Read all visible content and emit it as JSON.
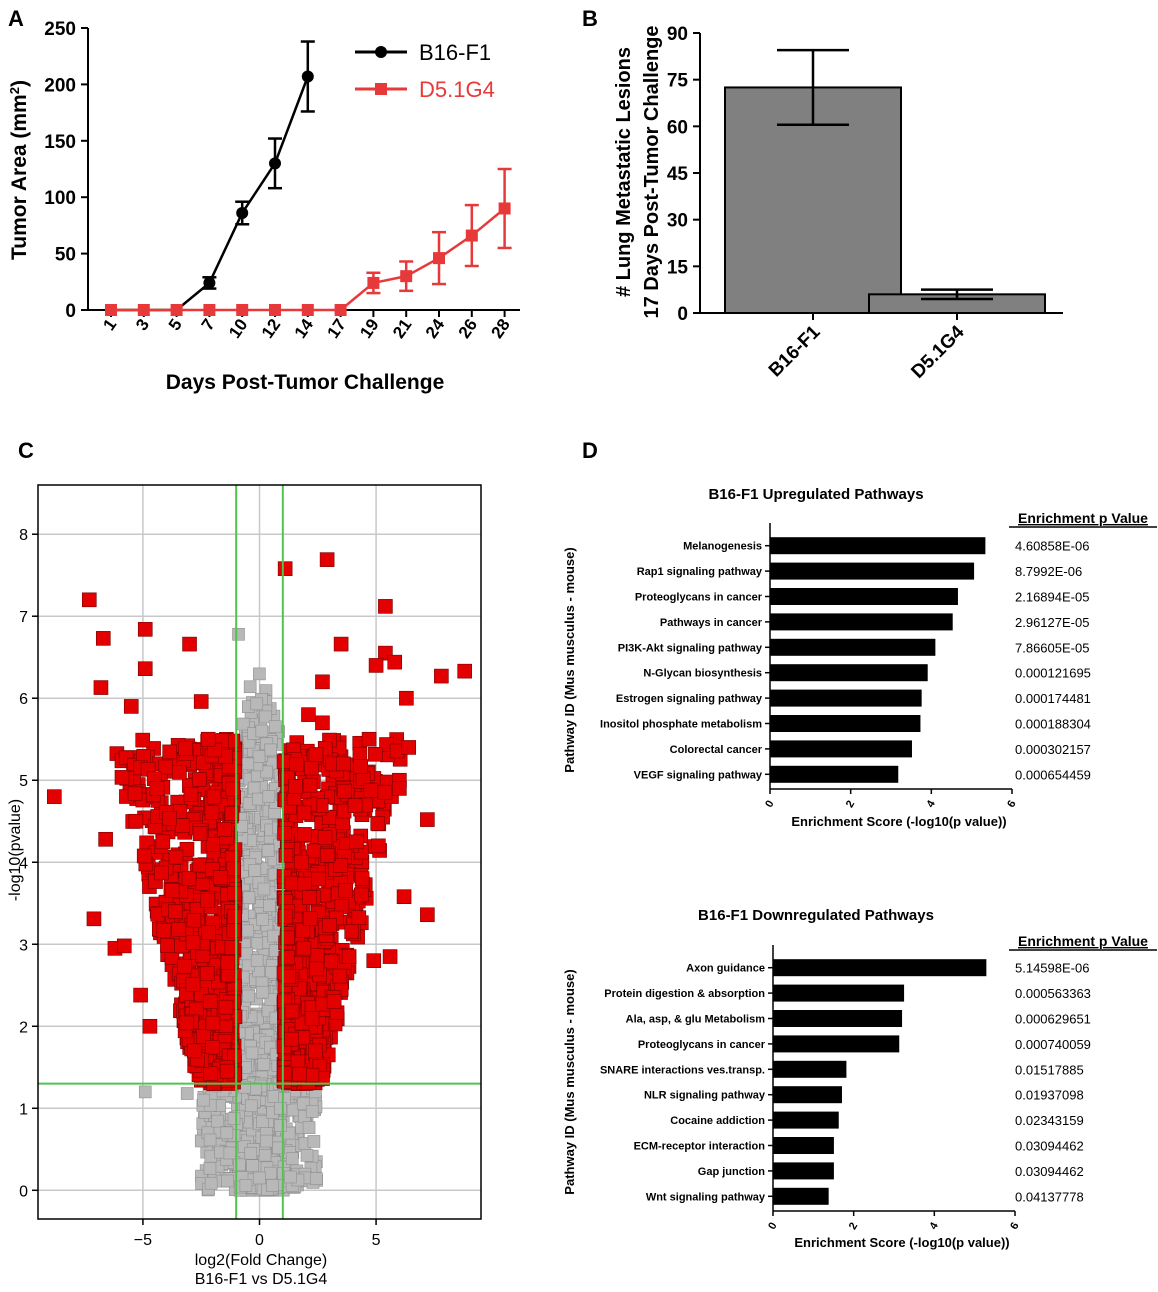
{
  "panel_labels": {
    "a": "A",
    "b": "B",
    "c": "C",
    "d": "D"
  },
  "colors": {
    "black": "#000000",
    "red": "#e8393a",
    "bar_gray": "#808080",
    "point_red": "#e30000",
    "point_gray": "#b8b8b8",
    "grid": "#c8c8c8",
    "threshold": "#53c24f"
  },
  "chart_data": [
    {
      "type": "line",
      "panel": "A",
      "xlabel": "Days Post-Tumor Challenge",
      "ylabel_main": "Tumor Area (mm",
      "ylabel_sup": "2",
      "ylabel_end": ")",
      "ylim": [
        0,
        250
      ],
      "yticks": [
        0,
        50,
        100,
        150,
        200,
        250
      ],
      "categories": [
        "1",
        "3",
        "5",
        "7",
        "10",
        "12",
        "14",
        "17",
        "19",
        "21",
        "24",
        "26",
        "28"
      ],
      "series": [
        {
          "name": "B16-F1",
          "color": "#000000",
          "marker": "circle",
          "values": [
            0,
            0,
            0,
            24,
            86,
            130,
            207,
            null,
            null,
            null,
            null,
            null,
            null
          ],
          "errors": [
            0,
            0,
            0,
            5,
            10,
            22,
            31,
            null,
            null,
            null,
            null,
            null,
            null
          ]
        },
        {
          "name": "D5.1G4",
          "color": "#e8393a",
          "marker": "square",
          "values": [
            0,
            0,
            0,
            0,
            0,
            0,
            0,
            0,
            24,
            30,
            46,
            66,
            90
          ],
          "errors": [
            0,
            0,
            0,
            0,
            0,
            0,
            0,
            0,
            9,
            13,
            23,
            27,
            35
          ]
        }
      ]
    },
    {
      "type": "bar",
      "panel": "B",
      "ylabel_line1": "# Lung Metastatic Lesions",
      "ylabel_line2": "17 Days Post-Tumor Challenge",
      "ylim": [
        0,
        90
      ],
      "yticks": [
        0,
        15,
        30,
        45,
        60,
        75,
        90
      ],
      "categories": [
        "B16-F1",
        "D5.1G4"
      ],
      "values": [
        72.5,
        6
      ],
      "errors": [
        12,
        1.5
      ]
    },
    {
      "type": "scatter",
      "panel": "C",
      "xlabel_line1": "log2(Fold Change)",
      "xlabel_line2": "B16-F1 vs D5.1G4",
      "ylabel": "-log10(pvalue)",
      "xlim": [
        -9.5,
        9.5
      ],
      "ylim": [
        -0.35,
        8.6
      ],
      "xticks": [
        -5,
        0,
        5
      ],
      "xtick_labels": [
        "−5",
        "0",
        "5"
      ],
      "yticks": [
        0,
        1,
        2,
        3,
        4,
        5,
        6,
        7,
        8
      ],
      "x_thresholds": [
        -1,
        1
      ],
      "y_threshold": 1.3,
      "significant_points": [
        [
          -8.8,
          4.8
        ],
        [
          -7.3,
          7.2
        ],
        [
          -6.7,
          6.73
        ],
        [
          -6.8,
          6.13
        ],
        [
          -6.6,
          4.28
        ],
        [
          -7.1,
          3.31
        ],
        [
          -6.2,
          2.95
        ],
        [
          -5.8,
          2.98
        ],
        [
          -5.1,
          2.38
        ],
        [
          -4.9,
          6.84
        ],
        [
          -4.9,
          6.36
        ],
        [
          -4.7,
          2.0
        ],
        [
          -3.0,
          6.66
        ],
        [
          -2.5,
          5.96
        ],
        [
          -5.5,
          5.9
        ],
        [
          -5.3,
          4.5
        ],
        [
          -4.4,
          4.9
        ],
        [
          -3.6,
          3.4
        ],
        [
          -2.2,
          5.5
        ],
        [
          -1.5,
          4.4
        ],
        [
          -2.8,
          1.7
        ],
        [
          1.1,
          7.58
        ],
        [
          2.9,
          7.69
        ],
        [
          3.5,
          6.66
        ],
        [
          5.4,
          7.12
        ],
        [
          5.4,
          6.55
        ],
        [
          5.0,
          6.4
        ],
        [
          5.8,
          6.44
        ],
        [
          7.8,
          6.27
        ],
        [
          8.8,
          6.33
        ],
        [
          2.7,
          6.2
        ],
        [
          2.7,
          5.7
        ],
        [
          6.3,
          6.0
        ],
        [
          6.4,
          5.4
        ],
        [
          6.0,
          5.0
        ],
        [
          7.2,
          4.52
        ],
        [
          6.2,
          3.58
        ],
        [
          7.2,
          3.36
        ],
        [
          5.6,
          2.85
        ],
        [
          4.9,
          2.8
        ],
        [
          6.0,
          4.9
        ],
        [
          5.1,
          4.2
        ],
        [
          4.4,
          3.8
        ],
        [
          3.6,
          5.2
        ],
        [
          1.8,
          4.0
        ],
        [
          2.4,
          1.7
        ],
        [
          3.2,
          2.3
        ],
        [
          2.1,
          5.8
        ],
        [
          4.7,
          5.5
        ]
      ],
      "nonsignificant_points": [
        [
          -0.9,
          6.78
        ],
        [
          -0.4,
          6.14
        ],
        [
          0.1,
          5.6
        ],
        [
          -0.5,
          5.2
        ],
        [
          0.4,
          4.8
        ],
        [
          -0.2,
          3.9
        ],
        [
          0.6,
          3.1
        ],
        [
          -0.7,
          2.6
        ],
        [
          -4.9,
          1.2
        ],
        [
          -3.1,
          1.18
        ],
        [
          -0.3,
          0.3
        ],
        [
          0.3,
          0.6
        ],
        [
          0.9,
          1.0
        ],
        [
          -1.4,
          0.7
        ],
        [
          2.4,
          1.2
        ],
        [
          -2.4,
          1.1
        ],
        [
          0.0,
          0.15
        ],
        [
          -0.6,
          1.5
        ],
        [
          0.7,
          2.1
        ],
        [
          -0.1,
          2.8
        ]
      ]
    },
    {
      "type": "bar",
      "panel": "D-up",
      "orientation": "horizontal",
      "title": "B16-F1 Upregulated Pathways",
      "ylabel": "Pathway ID (Mus musculus - mouse)",
      "xlabel": "Enrichment Score (-log10(p value))",
      "value_header": "Enrichment p Value",
      "xlim": [
        0,
        6
      ],
      "xticks": [
        0,
        2,
        4,
        6
      ],
      "categories": [
        "Melanogenesis",
        "Rap1 signaling pathway",
        "Proteoglycans in cancer",
        "Pathways in cancer",
        "PI3K-Akt signaling pathway",
        "N-Glycan biosynthesis",
        "Estrogen signaling pathway",
        "Inositol phosphate metabolism",
        "Colorectal cancer",
        "VEGF signaling pathway"
      ],
      "values": [
        5.34,
        5.06,
        4.66,
        4.53,
        4.1,
        3.91,
        3.76,
        3.73,
        3.52,
        3.18
      ],
      "p_values": [
        "4.60858E-06",
        "8.7992E-06",
        "2.16894E-05",
        "2.96127E-05",
        "7.86605E-05",
        "0.000121695",
        "0.000174481",
        "0.000188304",
        "0.000302157",
        "0.000654459"
      ]
    },
    {
      "type": "bar",
      "panel": "D-down",
      "orientation": "horizontal",
      "title": "B16-F1 Downregulated Pathways",
      "ylabel": "Pathway ID (Mus musculus - mouse)",
      "xlabel": "Enrichment Score (-log10(p value))",
      "value_header": "Enrichment p Value",
      "xlim": [
        0,
        6
      ],
      "xticks": [
        0,
        2,
        4,
        6
      ],
      "categories": [
        "Axon guidance",
        "Protein digestion & absorption",
        "Ala, asp, & glu Metabolism",
        "Proteoglycans in cancer",
        "SNARE interactions ves.transp.",
        "NLR signaling pathway",
        "Cocaine addiction",
        "ECM-receptor interaction",
        "Gap junction",
        "Wnt signaling pathway"
      ],
      "values": [
        5.29,
        3.25,
        3.2,
        3.13,
        1.82,
        1.71,
        1.63,
        1.51,
        1.51,
        1.38
      ],
      "p_values": [
        "5.14598E-06",
        "0.000563363",
        "0.000629651",
        "0.000740059",
        "0.01517885",
        "0.01937098",
        "0.02343159",
        "0.03094462",
        "0.03094462",
        "0.04137778"
      ]
    }
  ]
}
